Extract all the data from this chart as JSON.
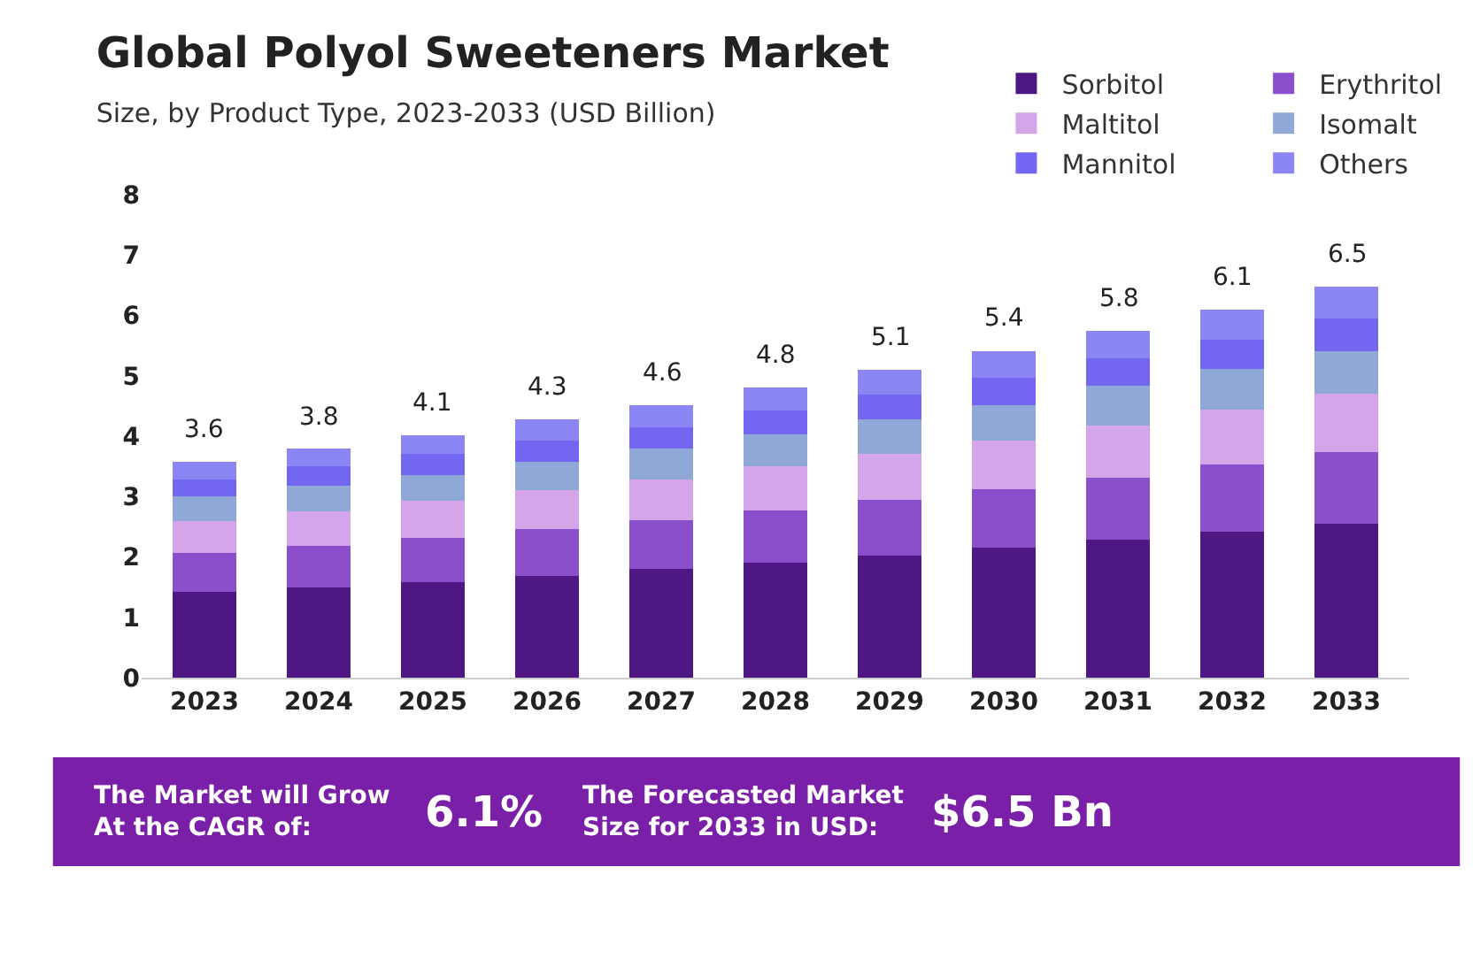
{
  "chart_data": {
    "type": "bar",
    "stacked": true,
    "title": "Global Polyol Sweeteners Market",
    "subtitle": "Size, by Product Type, 2023-2033 (USD Billion)",
    "categories": [
      "2023",
      "2024",
      "2025",
      "2026",
      "2027",
      "2028",
      "2029",
      "2030",
      "2031",
      "2032",
      "2033"
    ],
    "series": [
      {
        "name": "Sorbitol",
        "color": "#4f1784",
        "values": [
          1.42,
          1.5,
          1.58,
          1.68,
          1.8,
          1.9,
          2.02,
          2.15,
          2.28,
          2.42,
          2.55
        ]
      },
      {
        "name": "Erythritol",
        "color": "#8b4fcb",
        "values": [
          0.64,
          0.68,
          0.74,
          0.78,
          0.81,
          0.87,
          0.92,
          0.97,
          1.03,
          1.11,
          1.18
        ]
      },
      {
        "name": "Maltitol",
        "color": "#d4a5e8",
        "values": [
          0.54,
          0.58,
          0.61,
          0.64,
          0.67,
          0.73,
          0.77,
          0.81,
          0.87,
          0.91,
          0.97
        ]
      },
      {
        "name": "Isomalt",
        "color": "#8fa8d8",
        "values": [
          0.41,
          0.42,
          0.43,
          0.48,
          0.51,
          0.53,
          0.57,
          0.59,
          0.65,
          0.67,
          0.71
        ]
      },
      {
        "name": "Mannitol",
        "color": "#7366f0",
        "values": [
          0.27,
          0.32,
          0.34,
          0.35,
          0.36,
          0.39,
          0.41,
          0.45,
          0.46,
          0.49,
          0.54
        ]
      },
      {
        "name": "Others",
        "color": "#8c86f5",
        "values": [
          0.29,
          0.29,
          0.32,
          0.35,
          0.37,
          0.39,
          0.41,
          0.44,
          0.46,
          0.5,
          0.53
        ]
      }
    ],
    "totals": [
      "3.6",
      "3.8",
      "4.1",
      "4.3",
      "4.6",
      "4.8",
      "5.1",
      "5.4",
      "5.8",
      "6.1",
      "6.5"
    ],
    "ylim": [
      0,
      8
    ],
    "yticks": [
      0,
      1,
      2,
      3,
      4,
      5,
      6,
      7,
      8
    ],
    "legend": "top right",
    "annotations": [
      "The Market will Grow\nAt the CAGR of:",
      "6.1%",
      "The Forecasted Market\nSize for 2033 in USD:",
      "$6.5 Bn"
    ]
  }
}
